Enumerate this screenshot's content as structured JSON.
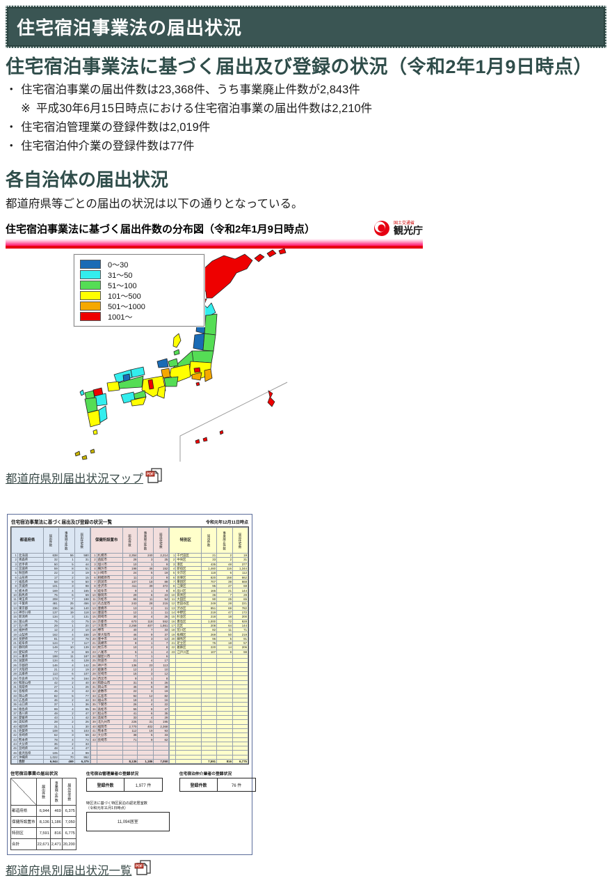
{
  "page": {
    "header_title": "住宅宿泊事業法の届出状況",
    "main_heading": "住宅宿泊事業法に基づく届出及び登録の状況（令和2年1月9日時点）",
    "section_heading": "各自治体の届出状況",
    "section_intro": "都道府県等ごとの届出の状況は以下の通りとなっている。"
  },
  "intro": {
    "bullets": [
      {
        "marker": "・",
        "indent": false,
        "text": "住宅宿泊事業の届出件数は23,368件、うち事業廃止件数が2,843件"
      },
      {
        "marker": "※",
        "indent": true,
        "text": "平成30年6月15日時点における住宅宿泊事業の届出件数は2,210件"
      },
      {
        "marker": "・",
        "indent": false,
        "text": "住宅宿泊管理業の登録件数は2,019件"
      },
      {
        "marker": "・",
        "indent": false,
        "text": "住宅宿泊仲介業の登録件数は77件"
      }
    ]
  },
  "map_figure": {
    "title": "住宅宿泊事業法に基づく届出件数の分布図（令和2年1月9日時点）",
    "logo": {
      "ministry": "国土交通省",
      "agency": "観光庁",
      "accent_color": "#e60012"
    },
    "legend": [
      {
        "label": "0～30",
        "color": "#1a6bb5"
      },
      {
        "label": "31～50",
        "color": "#33eeee"
      },
      {
        "label": "51～100",
        "color": "#55dd55"
      },
      {
        "label": "101～500",
        "color": "#ffff00"
      },
      {
        "label": "501～1000",
        "color": "#f5a800"
      },
      {
        "label": "1001～",
        "color": "#ee0000"
      }
    ],
    "link_label": "都道府県別届出状況マップ"
  },
  "table_figure": {
    "title": "住宅宿泊事業法に基づく届出及び登録の状況一覧",
    "as_of": "令和元年12月11日時点",
    "column_headers": [
      "届出件数",
      "事業廃止件数",
      "届出住宅数"
    ],
    "groups": [
      {
        "label": "都道府県",
        "color": "#dbe6f3",
        "rows": [
          [
            "北海道",
            "638",
            "56",
            "580"
          ],
          [
            "青森県",
            "32",
            "1",
            "31"
          ],
          [
            "岩手県",
            "50",
            "5",
            "44"
          ],
          [
            "宮城県",
            "59",
            "8",
            "51"
          ],
          [
            "秋田県",
            "22",
            "3",
            "19"
          ],
          [
            "山形県",
            "17",
            "2",
            "15"
          ],
          [
            "福島県",
            "58",
            "9",
            "50"
          ],
          [
            "茨城県",
            "101",
            "3",
            "98"
          ],
          [
            "栃木県",
            "169",
            "4",
            "165"
          ],
          [
            "群馬県",
            "75",
            "6",
            "69"
          ],
          [
            "埼玉県",
            "208",
            "7",
            "198"
          ],
          [
            "千葉県",
            "481",
            "25",
            "456"
          ],
          [
            "東京都",
            "236",
            "16",
            "140"
          ],
          [
            "神奈川県",
            "137",
            "19",
            "118"
          ],
          [
            "新潟県",
            "134",
            "3",
            "131"
          ],
          [
            "富山県",
            "75",
            "0",
            "75"
          ],
          [
            "石川県",
            "29",
            "1",
            "20"
          ],
          [
            "福井県",
            "12",
            "2",
            "10"
          ],
          [
            "山梨県",
            "162",
            "4",
            "158"
          ],
          [
            "長野県",
            "81",
            "3",
            "78"
          ],
          [
            "岐阜県",
            "124",
            "7",
            "117"
          ],
          [
            "静岡県",
            "149",
            "10",
            "139"
          ],
          [
            "愛知県",
            "77",
            "8",
            "69"
          ],
          [
            "三重県",
            "198",
            "11",
            "187"
          ],
          [
            "滋賀県",
            "134",
            "6",
            "128"
          ],
          [
            "京都府",
            "146",
            "4",
            "142"
          ],
          [
            "大阪府",
            "21",
            "2",
            "19"
          ],
          [
            "兵庫県",
            "113",
            "6",
            "107"
          ],
          [
            "奈良県",
            "173",
            "9",
            "164"
          ],
          [
            "和歌山県",
            "42",
            "2",
            "40"
          ],
          [
            "鳥取県",
            "27",
            "1",
            "26"
          ],
          [
            "島根県",
            "45",
            "3",
            "42"
          ],
          [
            "岡山県",
            "82",
            "5",
            "77"
          ],
          [
            "広島県",
            "46",
            "2",
            "44"
          ],
          [
            "山口県",
            "37",
            "1",
            "36"
          ],
          [
            "徳島県",
            "99",
            "4",
            "95"
          ],
          [
            "香川県",
            "49",
            "2",
            "47"
          ],
          [
            "愛媛県",
            "43",
            "1",
            "42"
          ],
          [
            "高知県",
            "28",
            "2",
            "26"
          ],
          [
            "福岡県",
            "31",
            "1",
            "30"
          ],
          [
            "佐賀県",
            "108",
            "5",
            "103"
          ],
          [
            "長崎県",
            "62",
            "3",
            "59"
          ],
          [
            "熊本県",
            "78",
            "4",
            "74"
          ],
          [
            "大分県",
            "35",
            "2",
            "33"
          ],
          [
            "宮崎県",
            "48",
            "4",
            "47"
          ],
          [
            "鹿児島県",
            "105",
            "4",
            "99"
          ],
          [
            "沖縄県",
            "1,022",
            "70",
            "952"
          ]
        ],
        "total_label": "合計",
        "total": [
          "6,944",
          "469",
          "6,375"
        ]
      },
      {
        "label": "保健所設置市",
        "color": "#f2dedd",
        "rows": [
          [
            "札幌市",
            "2,354",
            "240",
            "2,214"
          ],
          [
            "函館市",
            "28",
            "3",
            "25"
          ],
          [
            "旭川市",
            "10",
            "1",
            "9"
          ],
          [
            "横浜市",
            "198",
            "46",
            "152"
          ],
          [
            "川崎市",
            "24",
            "5",
            "19"
          ],
          [
            "相模原市",
            "11",
            "2",
            "9"
          ],
          [
            "新潟市",
            "107",
            "18",
            "89"
          ],
          [
            "金沢市",
            "411",
            "39",
            "372"
          ],
          [
            "岐阜市",
            "9",
            "1",
            "8"
          ],
          [
            "静岡市",
            "29",
            "6",
            "23"
          ],
          [
            "浜松市",
            "65",
            "11",
            "54"
          ],
          [
            "名古屋市",
            "243",
            "28",
            "215"
          ],
          [
            "豊橋市",
            "13",
            "2",
            "11"
          ],
          [
            "豊田市",
            "12",
            "1",
            "11"
          ],
          [
            "岡崎市",
            "30",
            "4",
            "26"
          ],
          [
            "京都市",
            "670",
            "118",
            "552"
          ],
          [
            "大阪市",
            "2,268",
            "407",
            "1,861"
          ],
          [
            "堺市",
            "40",
            "7",
            "33"
          ],
          [
            "東大阪市",
            "46",
            "9",
            "37"
          ],
          [
            "豊中市",
            "16",
            "3",
            "13"
          ],
          [
            "高槻市",
            "8",
            "1",
            "7"
          ],
          [
            "枚方市",
            "10",
            "2",
            "8"
          ],
          [
            "八尾市",
            "5",
            "1",
            "4"
          ],
          [
            "寝屋川市",
            "7",
            "1",
            "6"
          ],
          [
            "吹田市",
            "21",
            "4",
            "17"
          ],
          [
            "神戸市",
            "136",
            "23",
            "113"
          ],
          [
            "姫路市",
            "12",
            "2",
            "10"
          ],
          [
            "尼崎市",
            "15",
            "3",
            "12"
          ],
          [
            "西宮市",
            "9",
            "1",
            "8"
          ],
          [
            "和歌山市",
            "31",
            "5",
            "26"
          ],
          [
            "岡山市",
            "45",
            "6",
            "39"
          ],
          [
            "倉敷市",
            "22",
            "3",
            "19"
          ],
          [
            "広島市",
            "94",
            "12",
            "82"
          ],
          [
            "福山市",
            "18",
            "2",
            "16"
          ],
          [
            "下関市",
            "26",
            "4",
            "22"
          ],
          [
            "高松市",
            "55",
            "8",
            "47"
          ],
          [
            "松山市",
            "41",
            "6",
            "35"
          ],
          [
            "高知市",
            "33",
            "4",
            "29"
          ],
          [
            "北九州市",
            "226",
            "31",
            "195"
          ],
          [
            "福岡市",
            "2,770",
            "402",
            "2,368"
          ],
          [
            "熊本市",
            "112",
            "19",
            "93"
          ],
          [
            "大分市",
            "38",
            "5",
            "33"
          ],
          [
            "長崎市",
            "71",
            "9",
            "62"
          ]
        ],
        "total_label": "",
        "total": [
          "8,136",
          "1,186",
          "7,050"
        ]
      },
      {
        "label": "特別区",
        "color": "#ffffcb",
        "rows": [
          [
            "千代田区",
            "21",
            "2",
            "19"
          ],
          [
            "中央区",
            "33",
            "2",
            "31"
          ],
          [
            "港区",
            "435",
            "48",
            "377"
          ],
          [
            "新宿区",
            "1,460",
            "116",
            "1,344"
          ],
          [
            "文京区",
            "118",
            "6",
            "112"
          ],
          [
            "台東区",
            "820",
            "158",
            "662"
          ],
          [
            "墨田区",
            "707",
            "39",
            "668"
          ],
          [
            "江東区",
            "95",
            "27",
            "68"
          ],
          [
            "品川区",
            "165",
            "21",
            "144"
          ],
          [
            "目黒区",
            "36",
            "7",
            "29"
          ],
          [
            "大田区",
            "90",
            "25",
            "65"
          ],
          [
            "世田谷区",
            "249",
            "28",
            "221"
          ],
          [
            "渋谷区",
            "851",
            "69",
            "782"
          ],
          [
            "中野区",
            "219",
            "47",
            "172"
          ],
          [
            "杉並区",
            "218",
            "18",
            "200"
          ],
          [
            "豊島区",
            "1,000",
            "72",
            "928"
          ],
          [
            "北区",
            "208",
            "64",
            "144"
          ],
          [
            "荒川区",
            "82",
            "11",
            "71"
          ],
          [
            "板橋区",
            "269",
            "50",
            "219"
          ],
          [
            "練馬区",
            "96",
            "5",
            "91"
          ],
          [
            "足立区",
            "75",
            "18",
            "57"
          ],
          [
            "葛飾区",
            "220",
            "14",
            "206"
          ],
          [
            "江戸川区",
            "107",
            "9",
            "98"
          ]
        ],
        "total_label": "",
        "total": [
          "7,591",
          "816",
          "6,775"
        ]
      }
    ],
    "summary": {
      "notification_title": "住宅宿泊事業の届出状況",
      "column_headers": [
        "届出件数",
        "事業廃止件数",
        "届出住宅数"
      ],
      "rows": [
        [
          "都道府県",
          "6,944",
          "469",
          "6,375"
        ],
        [
          "保健所設置市",
          "8,136",
          "1,186",
          "7,050"
        ],
        [
          "特別区",
          "7,591",
          "816",
          "6,775"
        ],
        [
          "合計",
          "22,671",
          "2,471",
          "20,200"
        ]
      ],
      "kanri_title": "住宅宿泊管理業者の登録状況",
      "kanri_label": "登録件数",
      "kanri_value": "1,977 件",
      "chukai_title": "住宅宿泊仲介業者の登録状況",
      "chukai_label": "登録件数",
      "chukai_value": "76 件",
      "tokku_title": "特区法に基づく特区民泊の認定居室数",
      "tokku_note": "（令和元年11月1日時点）",
      "tokku_value": "11,094居室"
    },
    "link_label": "都道府県別届出状況一覧"
  },
  "icons": {
    "pdf_badge": "PDF"
  }
}
